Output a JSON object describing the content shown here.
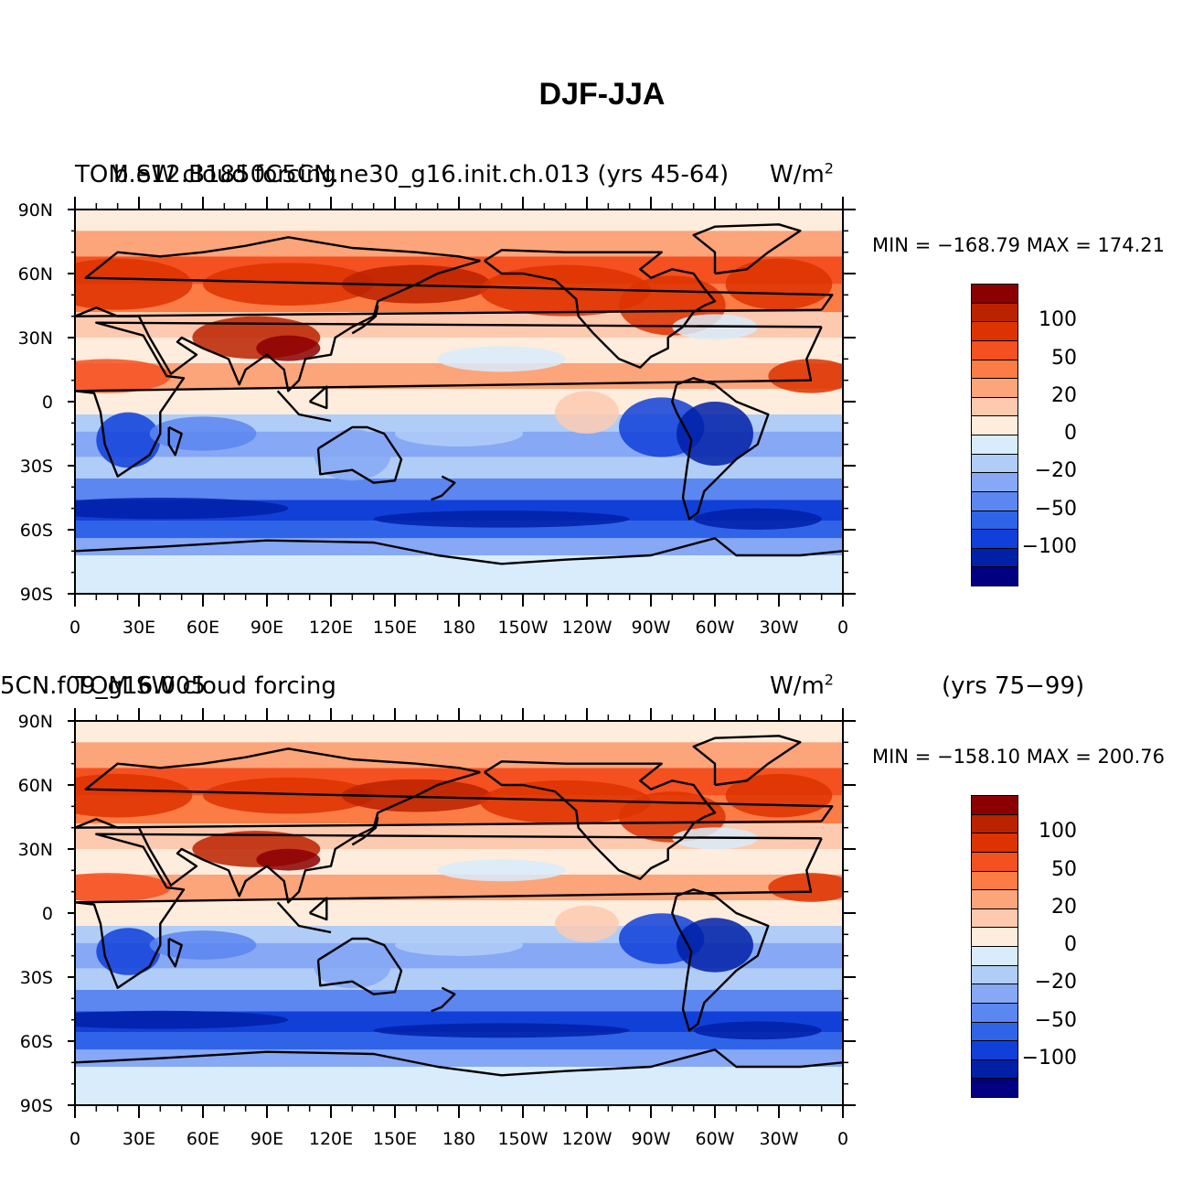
{
  "title": "DJF-JJA",
  "panels": [
    {
      "header_left_a": "TOM SW cloud forcing",
      "header_left_b": "b.e12.B1850C5CN.ne30_g16.init.ch.013 (yrs 45-64)",
      "header_right": "W/m",
      "header_right_sup": "2",
      "header_years": "",
      "min_max": "MIN = −168.79 MAX = 174.21"
    },
    {
      "header_left_a": "TOM SW cloud forcing",
      "header_left_b": "5CN.f09_g16.005",
      "header_right": "W/m",
      "header_right_sup": "2",
      "header_years": "(yrs 75−99)",
      "min_max": "MIN = −158.10 MAX = 200.76"
    }
  ],
  "map": {
    "y_ticks": [
      "90N",
      "60N",
      "30N",
      "0",
      "30S",
      "60S",
      "90S"
    ],
    "x_ticks": [
      "0",
      "30E",
      "60E",
      "90E",
      "120E",
      "150E",
      "180",
      "150W",
      "120W",
      "90W",
      "60W",
      "30W",
      "0"
    ]
  },
  "colorbar": {
    "colors": [
      "#8b0000",
      "#bb2200",
      "#dd3300",
      "#f55020",
      "#fb7c44",
      "#fca47a",
      "#fdcab0",
      "#feecdc",
      "#d8ecfc",
      "#b0cdf8",
      "#86a8f5",
      "#5c86f0",
      "#3064e8",
      "#1040d8",
      "#0020a8",
      "#000080"
    ],
    "labels": [
      "100",
      "50",
      "20",
      "0",
      "−20",
      "−50",
      "−100"
    ],
    "label_value_series": [
      100,
      50,
      20,
      0,
      -20,
      -50,
      -100
    ]
  },
  "legend_colors": {
    "land_outline": "#000000",
    "positive_accent": "#dd3300",
    "negative_accent": "#1040d8"
  }
}
